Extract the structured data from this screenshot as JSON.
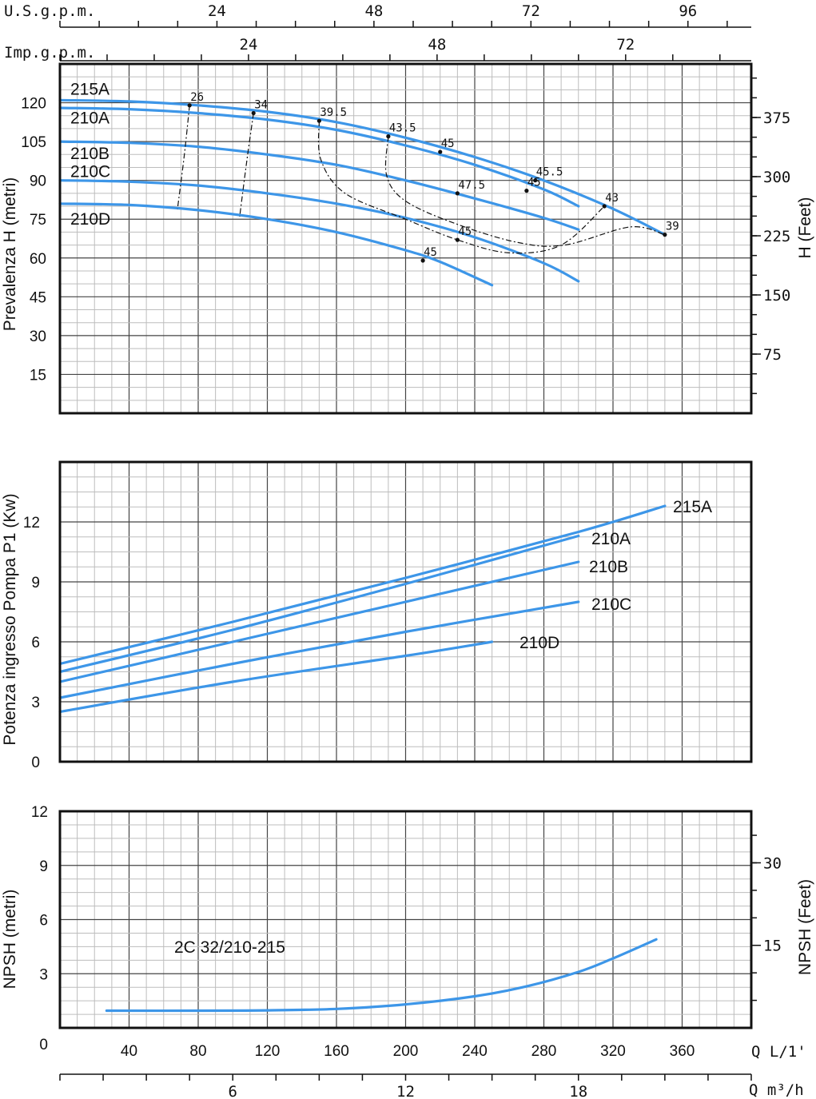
{
  "chart_data": [
    {
      "type": "line",
      "id": "head",
      "ylabel": "Prevalenza H (metri)",
      "ylabel_right": "H (Feet)",
      "xlim": [
        0,
        400
      ],
      "ylim": [
        0,
        135
      ],
      "y_ticks": [
        "15",
        "30",
        "45",
        "60",
        "75",
        "90",
        "105",
        "120"
      ],
      "y_tick_values": [
        15,
        30,
        45,
        60,
        75,
        90,
        105,
        120
      ],
      "y_right_ticks": [
        "75",
        "150",
        "225",
        "300",
        "375"
      ],
      "y_right_tick_values": [
        75,
        150,
        225,
        300,
        375
      ],
      "top_axis_1": {
        "label": "U.S.g.p.m.",
        "ticks": [
          "24",
          "48",
          "72",
          "96"
        ],
        "tick_values": [
          24,
          48,
          72,
          96
        ]
      },
      "top_axis_2": {
        "label": "Imp.g.p.m.",
        "ticks": [
          "24",
          "48",
          "72"
        ],
        "tick_values": [
          24,
          48,
          72
        ]
      },
      "series": [
        {
          "name": "215A",
          "x": [
            0,
            40,
            80,
            120,
            160,
            200,
            240,
            280,
            320,
            350
          ],
          "y": [
            121,
            120.5,
            119,
            116.5,
            112.5,
            106.5,
            99,
            90,
            79,
            69
          ]
        },
        {
          "name": "210A",
          "x": [
            0,
            40,
            80,
            120,
            160,
            200,
            240,
            280,
            300
          ],
          "y": [
            118,
            117.5,
            116,
            113.5,
            109.5,
            103.5,
            96,
            86.5,
            80
          ]
        },
        {
          "name": "210B",
          "x": [
            0,
            40,
            80,
            120,
            160,
            200,
            240,
            280,
            300
          ],
          "y": [
            105,
            104.5,
            103,
            100,
            96,
            90,
            83,
            75.5,
            71
          ]
        },
        {
          "name": "210C",
          "x": [
            0,
            40,
            80,
            120,
            160,
            200,
            240,
            280,
            300
          ],
          "y": [
            90,
            89.5,
            88,
            85,
            81,
            75.5,
            68,
            58,
            51
          ]
        },
        {
          "name": "210D",
          "x": [
            0,
            40,
            80,
            120,
            160,
            200,
            220,
            250
          ],
          "y": [
            81,
            80.5,
            78.5,
            75,
            70,
            63,
            58.5,
            49.5
          ]
        }
      ],
      "efficiency_labels": [
        {
          "label": "26",
          "x": 75,
          "y": 119
        },
        {
          "label": "34",
          "x": 112,
          "y": 116
        },
        {
          "label": "39.5",
          "x": 150,
          "y": 113
        },
        {
          "label": "43.5",
          "x": 190,
          "y": 107
        },
        {
          "label": "45",
          "x": 220,
          "y": 101
        },
        {
          "label": "45.5",
          "x": 275,
          "y": 90
        },
        {
          "label": "45",
          "x": 270,
          "y": 86
        },
        {
          "label": "47.5",
          "x": 230,
          "y": 85
        },
        {
          "label": "43",
          "x": 315,
          "y": 80
        },
        {
          "label": "39",
          "x": 350,
          "y": 69
        },
        {
          "label": "45",
          "x": 230,
          "y": 67
        },
        {
          "label": "45",
          "x": 210,
          "y": 59
        }
      ]
    },
    {
      "type": "line",
      "id": "power",
      "ylabel": "Potenza ingresso Pompa P1 (Kw)",
      "xlim": [
        0,
        400
      ],
      "ylim": [
        0,
        15
      ],
      "y_ticks": [
        "0",
        "3",
        "6",
        "9",
        "12"
      ],
      "y_tick_values": [
        0,
        3,
        6,
        9,
        12
      ],
      "series": [
        {
          "name": "215A",
          "x": [
            0,
            100,
            200,
            300,
            350
          ],
          "y": [
            4.9,
            7.0,
            9.2,
            11.5,
            12.8
          ]
        },
        {
          "name": "210A",
          "x": [
            0,
            100,
            200,
            300
          ],
          "y": [
            4.5,
            6.6,
            8.9,
            11.3
          ]
        },
        {
          "name": "210B",
          "x": [
            0,
            100,
            200,
            300
          ],
          "y": [
            4.0,
            6.0,
            8.0,
            10.0
          ]
        },
        {
          "name": "210C",
          "x": [
            0,
            100,
            200,
            300
          ],
          "y": [
            3.2,
            4.9,
            6.5,
            8.0
          ]
        },
        {
          "name": "210D",
          "x": [
            0,
            100,
            200,
            250
          ],
          "y": [
            2.5,
            4.0,
            5.3,
            6.0
          ]
        }
      ]
    },
    {
      "type": "line",
      "id": "npsh",
      "ylabel": "NPSH (metri)",
      "ylabel_right": "NPSH (Feet)",
      "annotation": "2C 32/210-215",
      "xlabel": "Q L/1'",
      "xlabel_2": "Q m³/h",
      "xlim": [
        0,
        400
      ],
      "ylim": [
        0,
        12
      ],
      "y_ticks": [
        "0",
        "3",
        "6",
        "9",
        "12"
      ],
      "y_tick_values": [
        0,
        3,
        6,
        9,
        12
      ],
      "y_right_ticks": [
        "15",
        "30"
      ],
      "y_right_tick_values": [
        15,
        30
      ],
      "x_ticks": [
        "40",
        "80",
        "120",
        "160",
        "200",
        "240",
        "280",
        "320",
        "360"
      ],
      "x_tick_values": [
        40,
        80,
        120,
        160,
        200,
        240,
        280,
        320,
        360
      ],
      "x2_ticks": [
        "6",
        "12",
        "18"
      ],
      "x2_tick_values": [
        6,
        12,
        18
      ],
      "series": [
        {
          "name": "2C 32/210-215",
          "x": [
            27,
            80,
            120,
            160,
            200,
            240,
            270,
            300,
            320,
            345
          ],
          "y": [
            0.95,
            0.95,
            0.97,
            1.05,
            1.3,
            1.75,
            2.3,
            3.1,
            3.85,
            4.9
          ]
        }
      ]
    }
  ]
}
